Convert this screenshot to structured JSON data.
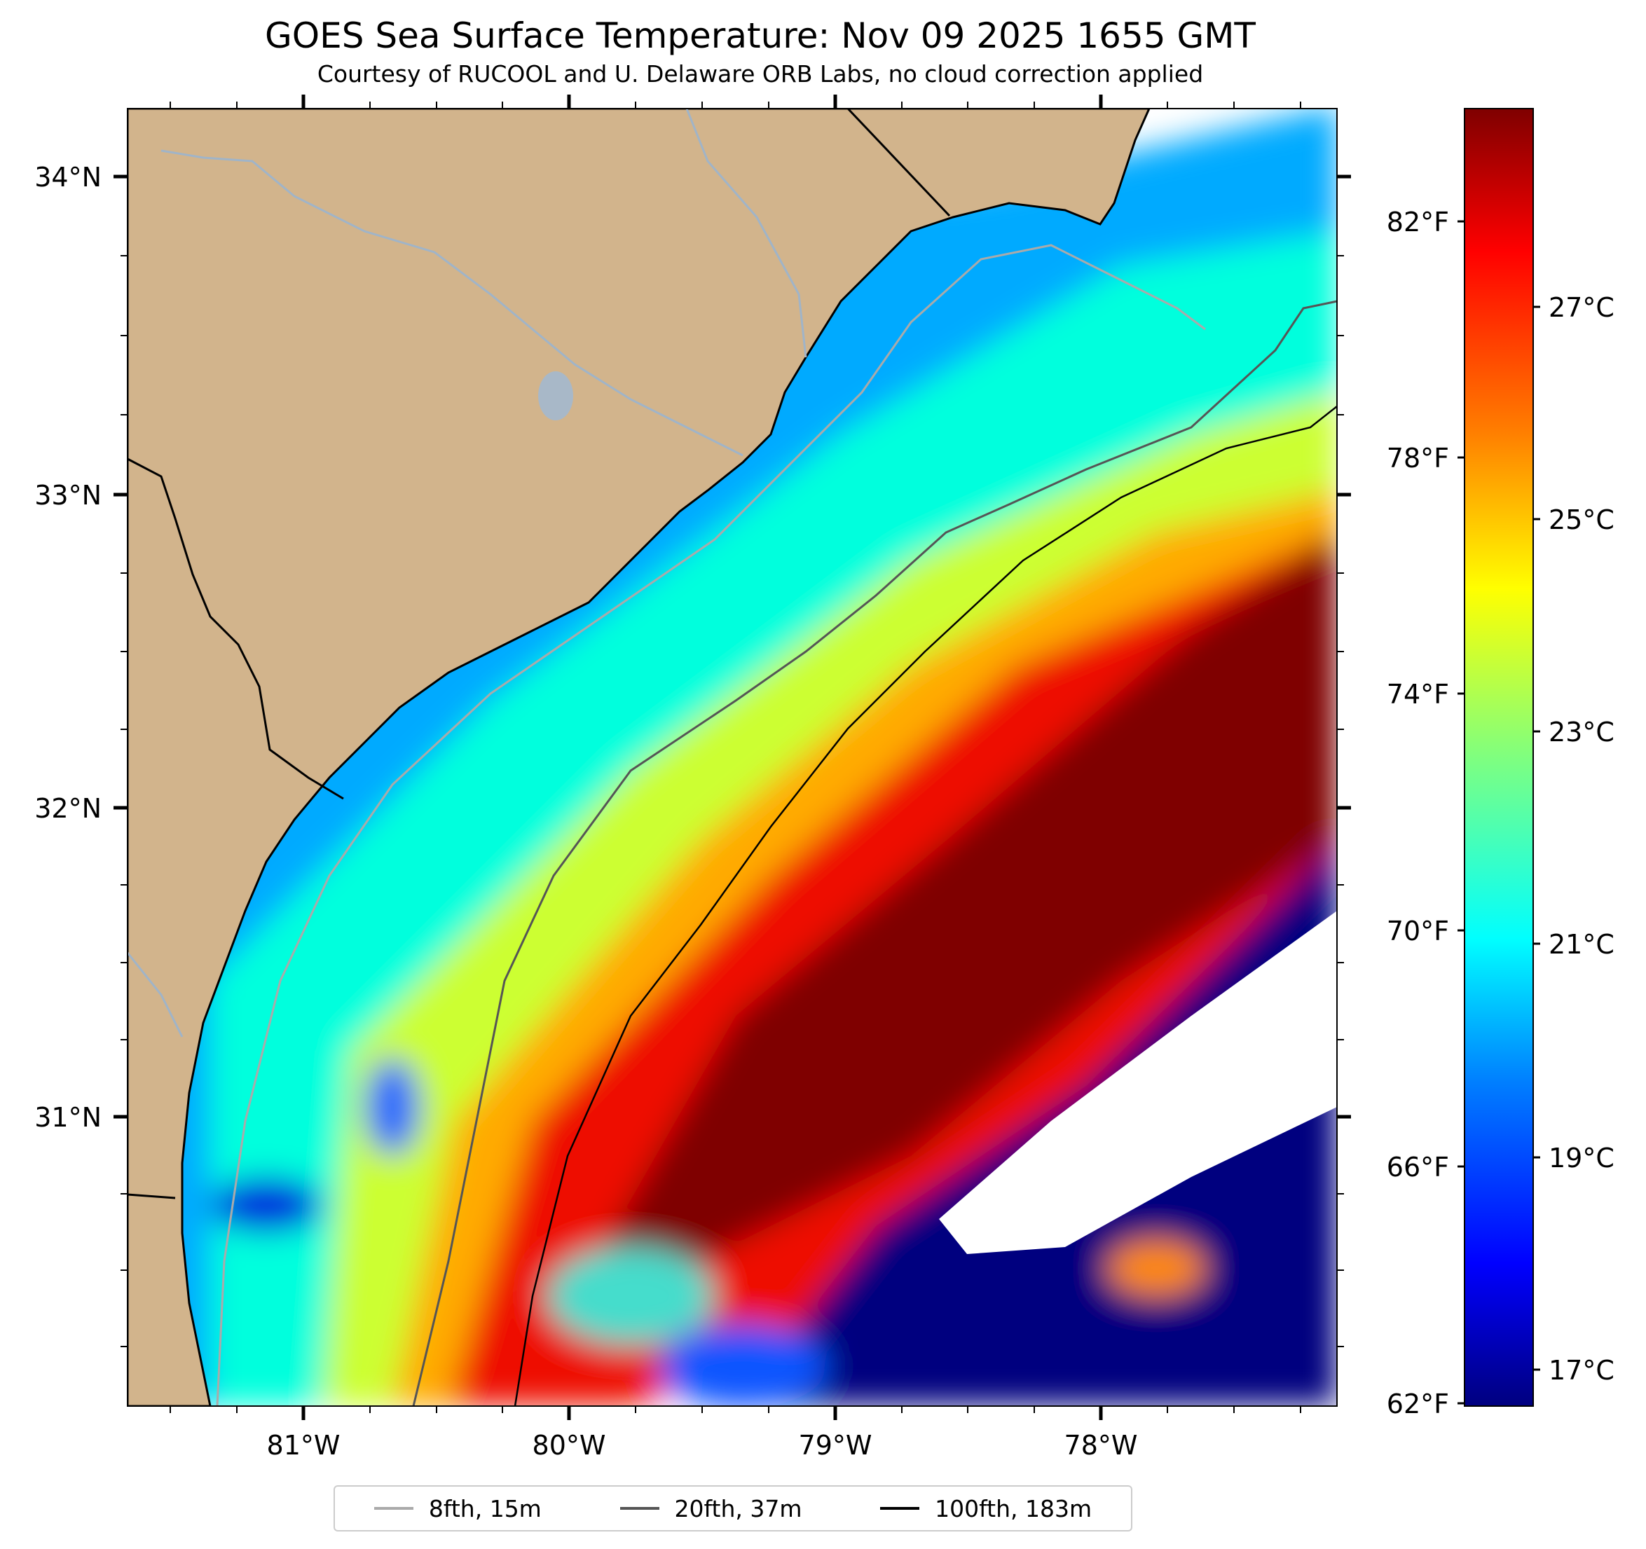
{
  "title": "GOES Sea Surface Temperature: Nov 09 2025 1655 GMT",
  "subtitle": "Courtesy of RUCOOL and U. Delaware ORB Labs, no cloud correction applied",
  "map": {
    "lat_labels": [
      "34°N",
      "33°N",
      "32°N",
      "31°N"
    ],
    "lon_labels": [
      "81°W",
      "80°W",
      "79°W",
      "78°W"
    ]
  },
  "colorbar": {
    "fahrenheit_labels": [
      "82°F",
      "78°F",
      "74°F",
      "70°F",
      "66°F",
      "62°F"
    ],
    "celsius_labels": [
      "27°C",
      "25°C",
      "23°C",
      "21°C",
      "19°C",
      "17°C"
    ],
    "colors": [
      "#00007f",
      "#0000ff",
      "#007fff",
      "#00ffff",
      "#7fff7f",
      "#ffff00",
      "#ff7f00",
      "#ff0000",
      "#7f0000"
    ]
  },
  "legend": [
    {
      "label": "8fth, 15m",
      "color": "#aaaaaa"
    },
    {
      "label": "20fth, 37m",
      "color": "#555555"
    },
    {
      "label": "100fth, 183m",
      "color": "#000000"
    }
  ],
  "land_color": "#d2b48c"
}
